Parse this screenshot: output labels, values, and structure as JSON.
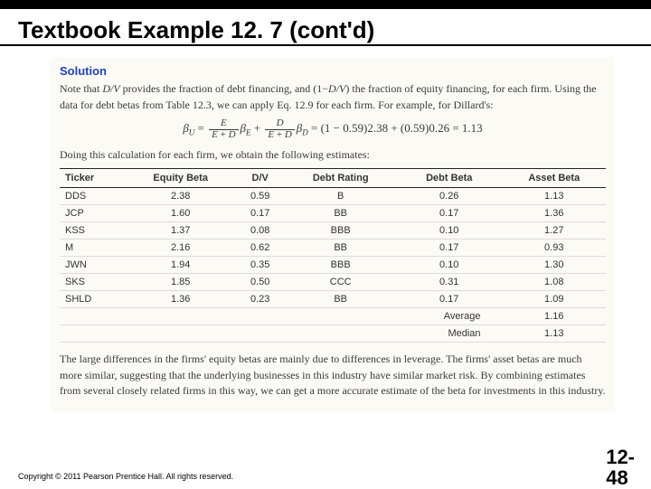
{
  "title": "Textbook Example 12. 7 (cont'd)",
  "solution_label": "Solution",
  "para1_a": "Note that ",
  "para1_dv": "D/V",
  "para1_b": " provides the fraction of debt financing, and (1−",
  "para1_c": ") the fraction of equity financing, for each firm. Using the data for debt betas from Table 12.3, we can apply Eq. 12.9 for each firm. For example, for Dillard's:",
  "eq_rhs": " = (1 − 0.59)2.38 + (0.59)0.26 = 1.13",
  "para2": "Doing this calculation for each firm, we obtain the following estimates:",
  "table": {
    "columns": [
      "Ticker",
      "Equity Beta",
      "D/V",
      "Debt Rating",
      "Debt Beta",
      "Asset Beta"
    ],
    "rows": [
      [
        "DDS",
        "2.38",
        "0.59",
        "B",
        "0.26",
        "1.13"
      ],
      [
        "JCP",
        "1.60",
        "0.17",
        "BB",
        "0.17",
        "1.36"
      ],
      [
        "KSS",
        "1.37",
        "0.08",
        "BBB",
        "0.10",
        "1.27"
      ],
      [
        "M",
        "2.16",
        "0.62",
        "BB",
        "0.17",
        "0.93"
      ],
      [
        "JWN",
        "1.94",
        "0.35",
        "BBB",
        "0.10",
        "1.30"
      ],
      [
        "SKS",
        "1.85",
        "0.50",
        "CCC",
        "0.31",
        "1.08"
      ],
      [
        "SHLD",
        "1.36",
        "0.23",
        "BB",
        "0.17",
        "1.09"
      ]
    ],
    "average_label": "Average",
    "average_value": "1.16",
    "median_label": "Median",
    "median_value": "1.13"
  },
  "para3": "The large differences in the firms' equity betas are mainly due to differences in leverage. The firms' asset betas are much more similar, suggesting that the underlying businesses in this industry have similar market risk. By combining estimates from several closely related firms in this way, we can get a more accurate estimate of the beta for investments in this industry.",
  "copyright": "Copyright © 2011 Pearson Prentice Hall. All rights reserved.",
  "pagenum_top": "12-",
  "pagenum_bot": "48"
}
